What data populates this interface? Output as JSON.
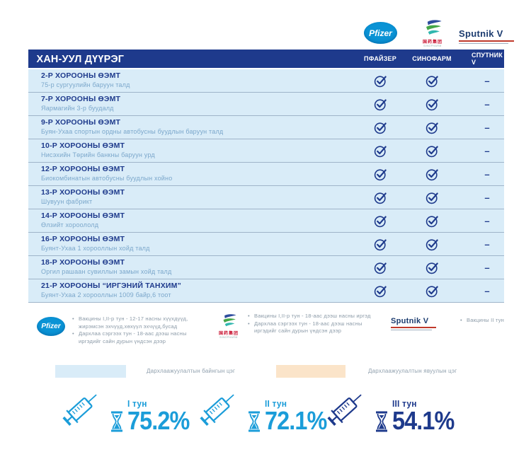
{
  "colors": {
    "navy": "#1e3a8c",
    "cyan": "#1b9dd9",
    "row_bg": "#d9ecf8",
    "point_permanent": "#d9ecf8",
    "point_mobile": "#fbe4c9",
    "pfizer_blue": "#0a93d5",
    "sino_blue": "#2e4d9e",
    "sino_green": "#45a648",
    "sino_teal": "#31b7af",
    "sputnik_navy": "#1b3b6f"
  },
  "top_logos": {
    "pfizer": "Pfizer",
    "sinopharm_cn": "国药集团",
    "sinopharm_en": "SINOPHARM",
    "sputnik": "Sputnik V"
  },
  "table": {
    "title": "ХАН-УУЛ ДҮҮРЭГ",
    "columns": [
      "ПФАЙЗЕР",
      "СИНОФАРМ",
      "СПУТНИК V"
    ],
    "rows": [
      {
        "name": "2-Р ХОРООНЫ ӨЭМТ",
        "location": "75-р сургуулийн баруун талд",
        "pfizer": true,
        "sinopharm": true,
        "sputnik": false
      },
      {
        "name": "7-Р ХОРООНЫ ӨЭМТ",
        "location": "Яармагийн 3-р буудалд",
        "pfizer": true,
        "sinopharm": true,
        "sputnik": false
      },
      {
        "name": "9-Р ХОРООНЫ ӨЭМТ",
        "location": "Буян-Ухаа спортын ордны автобусны буудлын баруун талд",
        "pfizer": true,
        "sinopharm": true,
        "sputnik": false
      },
      {
        "name": "10-Р ХОРООНЫ ӨЭМТ",
        "location": "Нисэхийн Төрийн банкны баруун урд",
        "pfizer": true,
        "sinopharm": true,
        "sputnik": false
      },
      {
        "name": "12-Р ХОРООНЫ ӨЭМТ",
        "location": "Биокомбинатын автобусны буудлын хойно",
        "pfizer": true,
        "sinopharm": true,
        "sputnik": false
      },
      {
        "name": "13-Р ХОРООНЫ ӨЭМТ",
        "location": "Шувуун фабрикт",
        "pfizer": true,
        "sinopharm": true,
        "sputnik": false
      },
      {
        "name": "14-Р ХОРООНЫ ӨЭМТ",
        "location": "Өлзийт хороололд",
        "pfizer": true,
        "sinopharm": true,
        "sputnik": false
      },
      {
        "name": "16-Р ХОРООНЫ ӨЭМТ",
        "location": "Буянт-Ухаа 1 хорооллын хойд талд",
        "pfizer": true,
        "sinopharm": true,
        "sputnik": false
      },
      {
        "name": "18-Р ХОРООНЫ ӨЭМТ",
        "location": "Оргил рашаан сувиллын замын хойд  талд",
        "pfizer": true,
        "sinopharm": true,
        "sputnik": false
      },
      {
        "name": "21-Р  ХОРООНЫ “ИРГЭНИЙ ТАНХИМ”",
        "location": "Буянт-Ухаа 2 хорооллын 1009 байр,6 тоот",
        "pfizer": true,
        "sinopharm": true,
        "sputnik": false
      }
    ]
  },
  "legend": {
    "pfizer": {
      "logo": "Pfizer",
      "bullets": [
        "Вакцины I,II-р тун - 12-17 насны хүүхдүүд, жирэмсэн эхчүүд,хөхүүл эхчүүд,бусад",
        "Дархлаа сэргээх тун - 18-аас дээш насны иргэдийг сайн дурын үндсэн дээр"
      ]
    },
    "sinopharm": {
      "logo_cn": "国药集团",
      "logo_en": "SINOPHARM",
      "bullets": [
        "Вакцины I,II-р тун - 18-аас дээш насны иргэд",
        "Дархлаа сэргээх тун - 18-аас дээш насны иргэдийг сайн дурын үндсэн дээр"
      ]
    },
    "sputnik": {
      "logo": "Sputnik V",
      "bullets": [
        "Вакцины II тун"
      ]
    }
  },
  "point_types": [
    {
      "label": "Дархлаажуулалтын байнгын цэг",
      "color": "#d9ecf8"
    },
    {
      "label": "Дархлаажуулалтын явуулын цэг",
      "color": "#fbe4c9"
    }
  ],
  "stats": [
    {
      "label": "I тун",
      "value": "75.2%",
      "color": "#1b9dd9"
    },
    {
      "label": "II тун",
      "value": "72.1%",
      "color": "#1b9dd9"
    },
    {
      "label": "III тун",
      "value": "54.1%",
      "color": "#1e3a8c"
    }
  ]
}
